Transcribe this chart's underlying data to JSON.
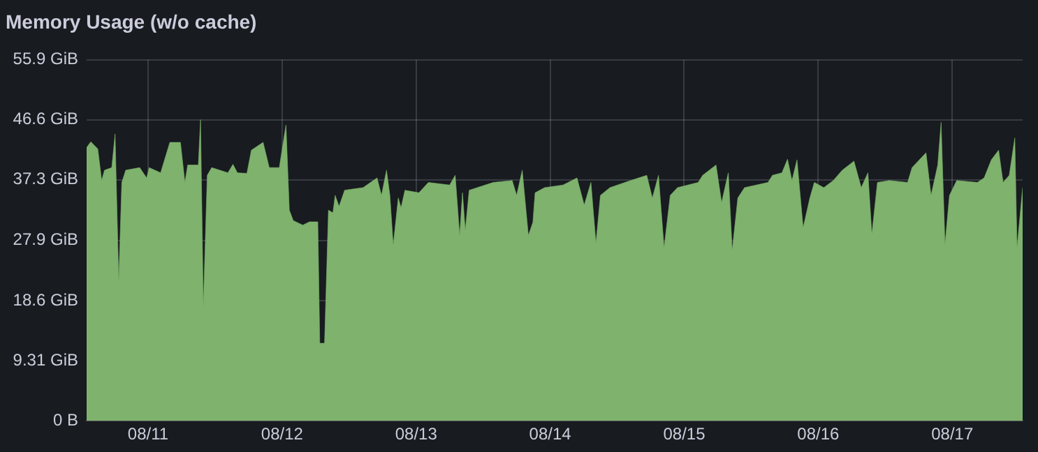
{
  "chart_data": {
    "type": "area",
    "title": "Memory Usage (w/o cache)",
    "x": [
      "--08-10T13:00",
      "--08-10T13:45",
      "--08-10T15:00",
      "--08-10T15:42",
      "--08-10T16:12",
      "--08-10T17:30",
      "--08-10T18:06",
      "--08-10T18:45",
      "--08-10T19:18",
      "--08-10T20:00",
      "--08-10T22:30",
      "--08-10T23:45",
      "--08-11T00:12",
      "--08-11T02:15",
      "--08-11T03:54",
      "--08-11T05:48",
      "--08-11T06:36",
      "--08-11T07:06",
      "--08-11T09:00",
      "--08-11T09:24",
      "--08-11T09:54",
      "--08-11T10:36",
      "--08-11T11:24",
      "--08-11T14:18",
      "--08-11T15:12",
      "--08-11T16:00",
      "--08-11T17:42",
      "--08-11T18:30",
      "--08-11T20:36",
      "--08-11T21:42",
      "--08-11T23:30",
      "--08-12T00:42",
      "--08-12T01:18",
      "--08-12T02:00",
      "--08-12T03:42",
      "--08-12T04:54",
      "--08-12T06:24",
      "--08-12T06:45",
      "--08-12T07:36",
      "--08-12T08:18",
      "--08-12T09:06",
      "--08-12T09:30",
      "--08-12T10:12",
      "--08-12T11:12",
      "--08-12T14:30",
      "--08-12T17:00",
      "--08-12T17:48",
      "--08-12T18:42",
      "--08-12T19:18",
      "--08-12T19:54",
      "--08-12T20:48",
      "--08-12T21:18",
      "--08-12T22:00",
      "--08-13T00:30",
      "--08-13T02:12",
      "--08-13T06:00",
      "--08-13T07:00",
      "--08-13T07:48",
      "--08-13T08:18",
      "--08-13T08:48",
      "--08-13T09:30",
      "--08-13T13:48",
      "--08-13T17:12",
      "--08-13T18:00",
      "--08-13T19:00",
      "--08-13T20:06",
      "--08-13T20:54",
      "--08-13T21:18",
      "--08-13T23:00",
      "--08-14T02:18",
      "--08-14T04:48",
      "--08-14T06:06",
      "--08-14T07:18",
      "--08-14T08:12",
      "--08-14T09:00",
      "--08-14T10:42",
      "--08-14T14:24",
      "--08-14T17:18",
      "--08-14T18:18",
      "--08-14T19:24",
      "--08-14T20:24",
      "--08-14T21:30",
      "--08-14T22:48",
      "--08-15T02:30",
      "--08-15T03:18",
      "--08-15T05:42",
      "--08-15T06:42",
      "--08-15T07:54",
      "--08-15T08:36",
      "--08-15T09:36",
      "--08-15T10:48",
      "--08-15T15:00",
      "--08-15T15:48",
      "--08-15T17:30",
      "--08-15T18:30",
      "--08-15T19:18",
      "--08-15T20:12",
      "--08-15T21:18",
      "--08-15T22:30",
      "--08-15T23:18",
      "--08-16T01:00",
      "--08-16T02:42",
      "--08-16T04:18",
      "--08-16T06:24",
      "--08-16T07:42",
      "--08-16T08:54",
      "--08-16T09:36",
      "--08-16T10:36",
      "--08-16T12:42",
      "--08-16T16:00",
      "--08-16T16:48",
      "--08-16T19:18",
      "--08-16T20:12",
      "--08-16T21:24",
      "--08-16T22:00",
      "--08-16T22:42",
      "--08-16T23:30",
      "--08-17T00:48",
      "--08-17T04:30",
      "--08-17T05:42",
      "--08-17T07:00",
      "--08-17T08:18",
      "--08-17T09:06",
      "--08-17T10:12",
      "--08-17T11:12",
      "--08-17T11:36",
      "--08-17T12:36"
    ],
    "series": [
      {
        "color": "#7eb26d",
        "values": [
          42.3,
          43.2,
          42.1,
          37.2,
          38.8,
          39.2,
          44.4,
          21.7,
          36.9,
          38.8,
          39.2,
          37.6,
          39.2,
          38.4,
          43.1,
          43.1,
          36.9,
          39.6,
          39.6,
          46.6,
          17.8,
          38.0,
          39.2,
          38.4,
          39.7,
          38.4,
          38.3,
          41.9,
          43.1,
          39.2,
          39.2,
          45.8,
          32.6,
          31.0,
          30.3,
          30.8,
          30.8,
          12.0,
          12.0,
          32.6,
          32.2,
          34.9,
          33.2,
          35.7,
          36.1,
          37.6,
          34.9,
          38.8,
          34.9,
          27.2,
          34.5,
          33.0,
          35.7,
          35.3,
          36.9,
          36.5,
          38.0,
          28.7,
          35.3,
          29.5,
          35.7,
          36.9,
          37.2,
          34.9,
          38.8,
          28.7,
          30.7,
          35.3,
          36.1,
          36.5,
          37.6,
          33.4,
          36.9,
          27.5,
          34.9,
          36.1,
          37.2,
          38.0,
          34.5,
          38.0,
          26.8,
          34.9,
          36.1,
          36.9,
          38.0,
          39.6,
          33.8,
          38.4,
          26.4,
          34.5,
          36.1,
          36.9,
          38.0,
          38.4,
          40.5,
          37.2,
          40.4,
          29.9,
          34.5,
          36.9,
          36.1,
          37.2,
          38.8,
          40.2,
          36.1,
          38.4,
          28.9,
          36.9,
          37.2,
          36.9,
          39.2,
          41.5,
          34.9,
          39.6,
          46.2,
          27.3,
          34.9,
          37.2,
          36.9,
          37.6,
          40.4,
          41.9,
          36.9,
          38.0,
          43.8,
          26.8,
          36.1
        ]
      }
    ],
    "xlim": [
      "--08-10T13:00",
      "--08-17T12:36"
    ],
    "xticks": [
      {
        "value": "--08-11",
        "label": "08/11"
      },
      {
        "value": "--08-12",
        "label": "08/12"
      },
      {
        "value": "--08-13",
        "label": "08/13"
      },
      {
        "value": "--08-14",
        "label": "08/14"
      },
      {
        "value": "--08-15",
        "label": "08/15"
      },
      {
        "value": "--08-16",
        "label": "08/16"
      },
      {
        "value": "--08-17",
        "label": "08/17"
      }
    ],
    "ylim": [
      0,
      55.9
    ],
    "yticks": [
      {
        "value": 0,
        "label": "0 B"
      },
      {
        "value": 9.31,
        "label": "9.31 GiB"
      },
      {
        "value": 18.6,
        "label": "18.6 GiB"
      },
      {
        "value": 27.9,
        "label": "27.9 GiB"
      },
      {
        "value": 37.3,
        "label": "37.3 GiB"
      },
      {
        "value": 46.6,
        "label": "46.6 GiB"
      },
      {
        "value": 55.9,
        "label": "55.9 GiB"
      }
    ],
    "grid": true
  }
}
